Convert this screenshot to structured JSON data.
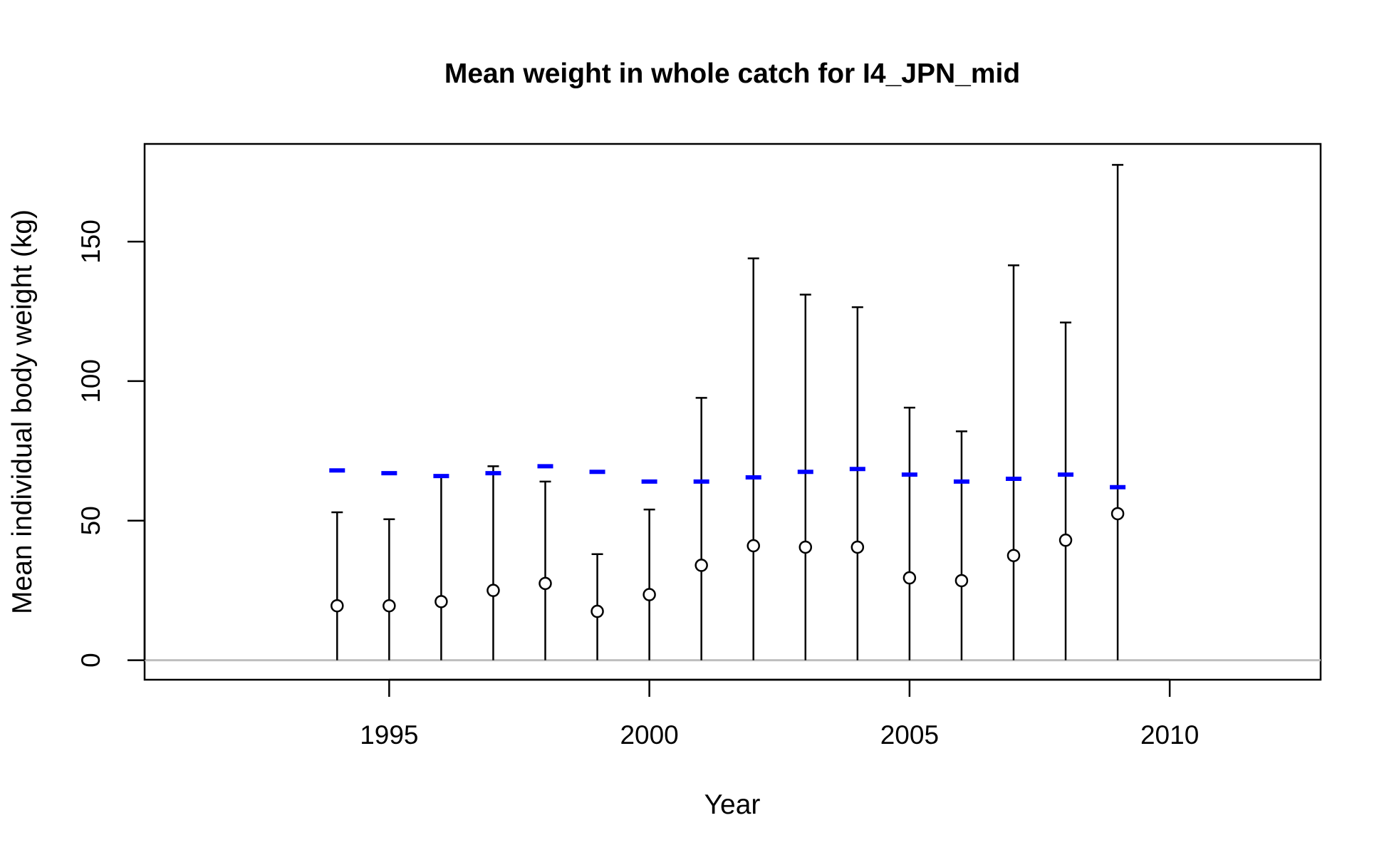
{
  "chart_data": {
    "type": "scatter",
    "title": "Mean weight in whole catch for I4_JPN_mid",
    "xlabel": "Year",
    "ylabel": "Mean individual body weight (kg)",
    "xlim": [
      1990.3,
      2012.9
    ],
    "ylim": [
      -7,
      185
    ],
    "x_ticks": [
      1995,
      2000,
      2005,
      2010
    ],
    "y_ticks": [
      0,
      50,
      100,
      150
    ],
    "reference_line_y": 0,
    "grid": false,
    "colors": {
      "observed": "#000000",
      "expected": "#0000ff",
      "reference_line": "#bebebe"
    },
    "points": [
      {
        "year": 1994,
        "observed": 19.5,
        "upper": 53.0,
        "expected": 68.0
      },
      {
        "year": 1995,
        "observed": 19.5,
        "upper": 50.5,
        "expected": 67.0
      },
      {
        "year": 1996,
        "observed": 21.0,
        "upper": 66.0,
        "expected": 66.0
      },
      {
        "year": 1997,
        "observed": 25.0,
        "upper": 69.5,
        "expected": 67.0
      },
      {
        "year": 1998,
        "observed": 27.5,
        "upper": 64.0,
        "expected": 69.5
      },
      {
        "year": 1999,
        "observed": 17.5,
        "upper": 38.0,
        "expected": 67.5
      },
      {
        "year": 2000,
        "observed": 23.5,
        "upper": 54.0,
        "expected": 64.0
      },
      {
        "year": 2001,
        "observed": 34.0,
        "upper": 94.0,
        "expected": 64.0
      },
      {
        "year": 2002,
        "observed": 41.0,
        "upper": 144.0,
        "expected": 65.5
      },
      {
        "year": 2003,
        "observed": 40.5,
        "upper": 131.0,
        "expected": 67.5
      },
      {
        "year": 2004,
        "observed": 40.5,
        "upper": 126.5,
        "expected": 68.5
      },
      {
        "year": 2005,
        "observed": 29.5,
        "upper": 90.5,
        "expected": 66.5
      },
      {
        "year": 2006,
        "observed": 28.5,
        "upper": 82.0,
        "expected": 64.0
      },
      {
        "year": 2007,
        "observed": 37.5,
        "upper": 141.5,
        "expected": 65.0
      },
      {
        "year": 2008,
        "observed": 43.0,
        "upper": 121.0,
        "expected": 66.5
      },
      {
        "year": 2009,
        "observed": 52.5,
        "upper": 177.5,
        "expected": 62.0
      }
    ]
  }
}
